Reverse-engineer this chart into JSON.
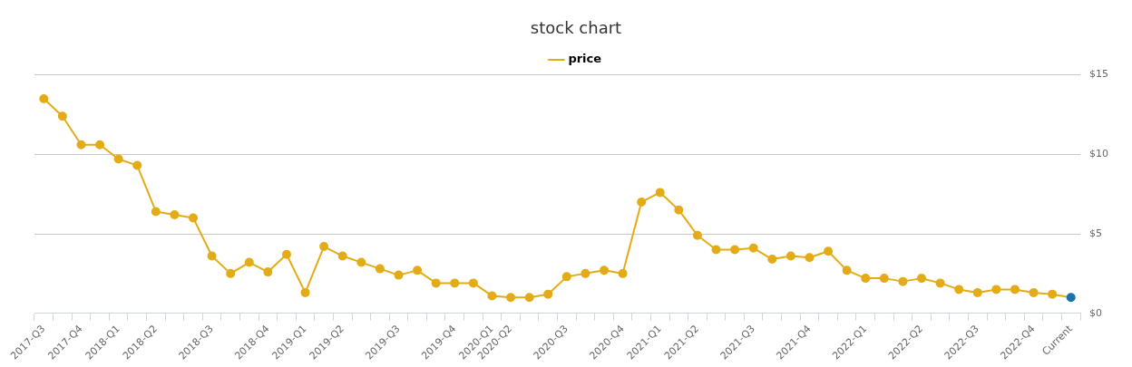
{
  "chart_data": {
    "type": "line",
    "title": "stock chart",
    "categories": [
      "2017-Q3",
      null,
      "2017-Q4",
      null,
      "2018-Q1",
      null,
      "2018-Q2",
      null,
      null,
      "2018-Q3",
      null,
      null,
      "2018-Q4",
      null,
      "2019-Q1",
      null,
      "2019-Q2",
      null,
      null,
      "2019-Q3",
      null,
      null,
      "2019-Q4",
      null,
      "2020-Q1",
      "2020-Q2",
      null,
      null,
      "2020-Q3",
      null,
      null,
      "2020-Q4",
      null,
      "2021-Q1",
      null,
      "2021-Q2",
      null,
      null,
      "2021-Q3",
      null,
      null,
      "2021-Q4",
      null,
      null,
      "2022-Q1",
      null,
      null,
      "2022-Q2",
      null,
      null,
      "2022-Q3",
      null,
      null,
      "2022-Q4",
      null,
      "Current"
    ],
    "series": [
      {
        "name": "price",
        "color": "#e3ac17",
        "values": [
          13.5,
          12.4,
          10.6,
          10.6,
          9.7,
          9.3,
          6.4,
          6.2,
          6.0,
          3.6,
          2.5,
          3.2,
          2.6,
          3.7,
          1.3,
          4.2,
          3.6,
          3.2,
          2.8,
          2.4,
          2.7,
          1.9,
          1.9,
          1.9,
          1.1,
          1.0,
          1.0,
          1.2,
          2.3,
          2.5,
          2.7,
          2.5,
          7.0,
          7.6,
          6.5,
          4.9,
          4.0,
          4.0,
          4.1,
          3.4,
          3.6,
          3.5,
          3.9,
          2.7,
          2.2,
          2.2,
          2.0,
          2.2,
          1.9,
          1.5,
          1.3,
          1.5,
          1.5,
          1.3,
          1.2,
          1.0
        ],
        "colors": [
          "#e3ac17",
          "#e3ac17",
          "#e3ac17",
          "#e3ac17",
          "#e3ac17",
          "#e3ac17",
          "#e3ac17",
          "#e3ac17",
          "#e3ac17",
          "#e3ac17",
          "#e3ac17",
          "#e3ac17",
          "#e3ac17",
          "#e3ac17",
          "#e3ac17",
          "#e3ac17",
          "#e3ac17",
          "#e3ac17",
          "#e3ac17",
          "#e3ac17",
          "#e3ac17",
          "#e3ac17",
          "#e3ac17",
          "#e3ac17",
          "#e3ac17",
          "#e3ac17",
          "#e3ac17",
          "#e3ac17",
          "#e3ac17",
          "#e3ac17",
          "#e3ac17",
          "#e3ac17",
          "#e3ac17",
          "#e3ac17",
          "#e3ac17",
          "#e3ac17",
          "#e3ac17",
          "#e3ac17",
          "#e3ac17",
          "#e3ac17",
          "#e3ac17",
          "#e3ac17",
          "#e3ac17",
          "#e3ac17",
          "#e3ac17",
          "#e3ac17",
          "#e3ac17",
          "#e3ac17",
          "#e3ac17",
          "#e3ac17",
          "#e3ac17",
          "#e3ac17",
          "#e3ac17",
          "#e3ac17",
          "#e3ac17",
          "#1b72ad"
        ]
      }
    ],
    "ylim": [
      0,
      15
    ],
    "yticks": [
      {
        "value": 0,
        "label": "$0"
      },
      {
        "value": 5,
        "label": "$5"
      },
      {
        "value": 10,
        "label": "$10"
      },
      {
        "value": 15,
        "label": "$15"
      }
    ],
    "grid": "y",
    "legend": "top",
    "marker": "circle",
    "line_style": "solid"
  }
}
